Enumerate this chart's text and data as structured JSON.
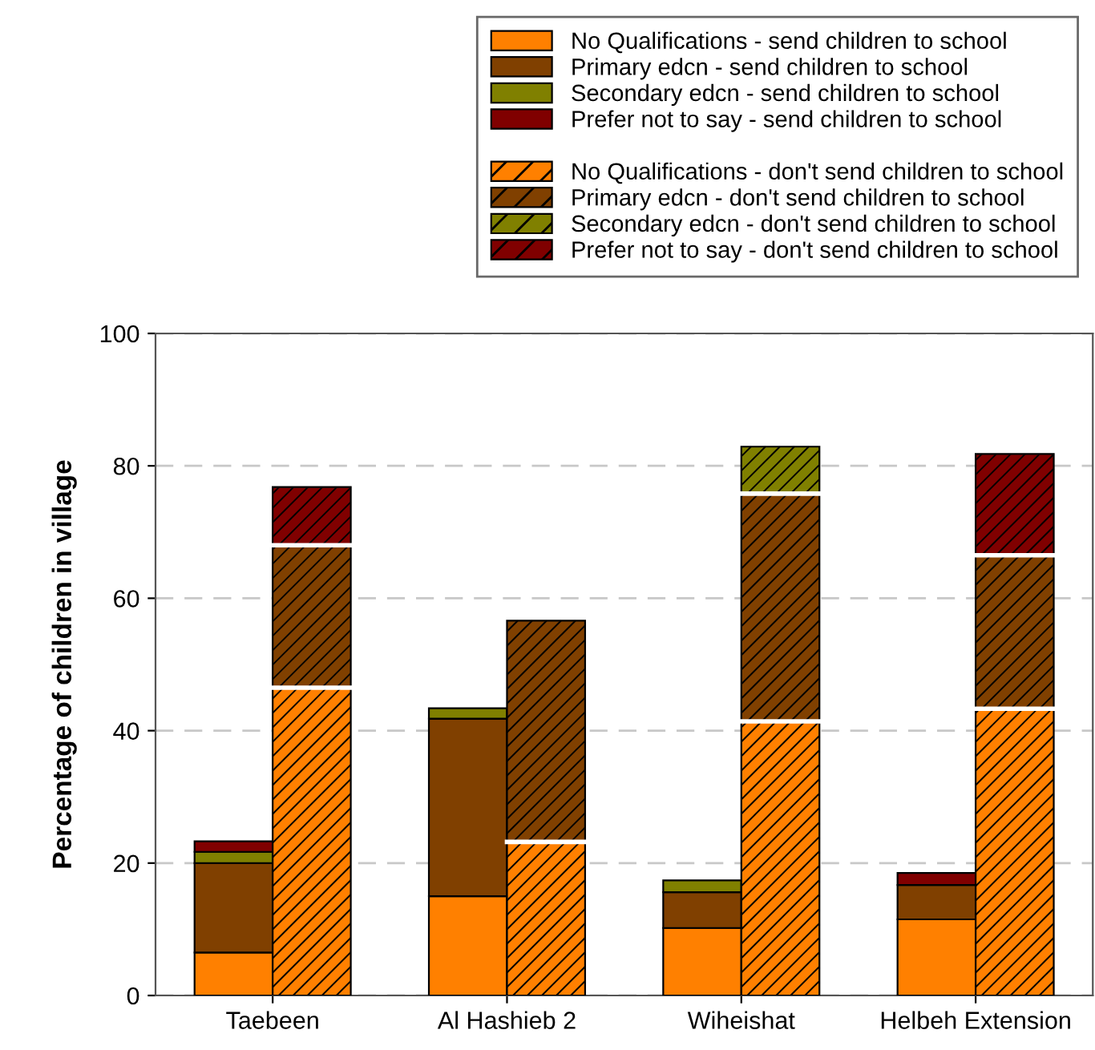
{
  "chart_data": {
    "type": "bar",
    "stacked": true,
    "ylabel": "Percentage of children in village",
    "categories": [
      "Taebeen",
      null,
      null,
      "Al Hashieb 2",
      null,
      null,
      "Wiheishat",
      null,
      null,
      "Helbeh Extension",
      null
    ],
    "series": [
      {
        "name": "No Qualifications - send children to school",
        "color": "#ff8000",
        "values": [
          6.5,
          null,
          null,
          15,
          null,
          null,
          10.2,
          null,
          null,
          11.5,
          null
        ]
      },
      {
        "name": "Primary edcn - send children to school",
        "color": "#804000",
        "values": [
          13.5,
          null,
          null,
          26.8,
          null,
          null,
          5.4,
          null,
          null,
          5.2,
          null
        ]
      },
      {
        "name": "Secondary edcn - send children to school",
        "color": "#808000",
        "values": [
          1.7,
          null,
          null,
          1.6,
          null,
          null,
          1.8,
          null,
          null,
          null,
          null
        ]
      },
      {
        "name": "Prefer not to say - send children to school",
        "color": "#800000",
        "values": [
          1.6,
          null,
          null,
          null,
          null,
          null,
          null,
          null,
          null,
          1.8,
          null
        ]
      },
      {
        "name": "No Qualifications - don't send children to school",
        "color": "#ff8000",
        "values": [
          null,
          46.5,
          null,
          null,
          23.2,
          null,
          null,
          41.4,
          null,
          null,
          43.3
        ]
      },
      {
        "name": "Primary edcn - don't send children to school",
        "color": "#804000",
        "values": [
          null,
          21.5,
          null,
          null,
          33.4,
          null,
          null,
          34.4,
          null,
          null,
          23.2
        ]
      },
      {
        "name": "Secondary edcn - don't send children to school",
        "color": "#808000",
        "values": [
          null,
          null,
          null,
          null,
          null,
          null,
          null,
          7.1,
          null,
          null,
          null
        ]
      },
      {
        "name": "Prefer not to say - don't send children to school",
        "color": "#800000",
        "values": [
          null,
          8.8,
          null,
          null,
          null,
          null,
          null,
          null,
          null,
          null,
          15.3
        ]
      }
    ],
    "ylim": [
      0,
      100
    ],
    "yticks": [
      0,
      20,
      40,
      60,
      80,
      100
    ],
    "grid": "y",
    "legend": "top right"
  }
}
